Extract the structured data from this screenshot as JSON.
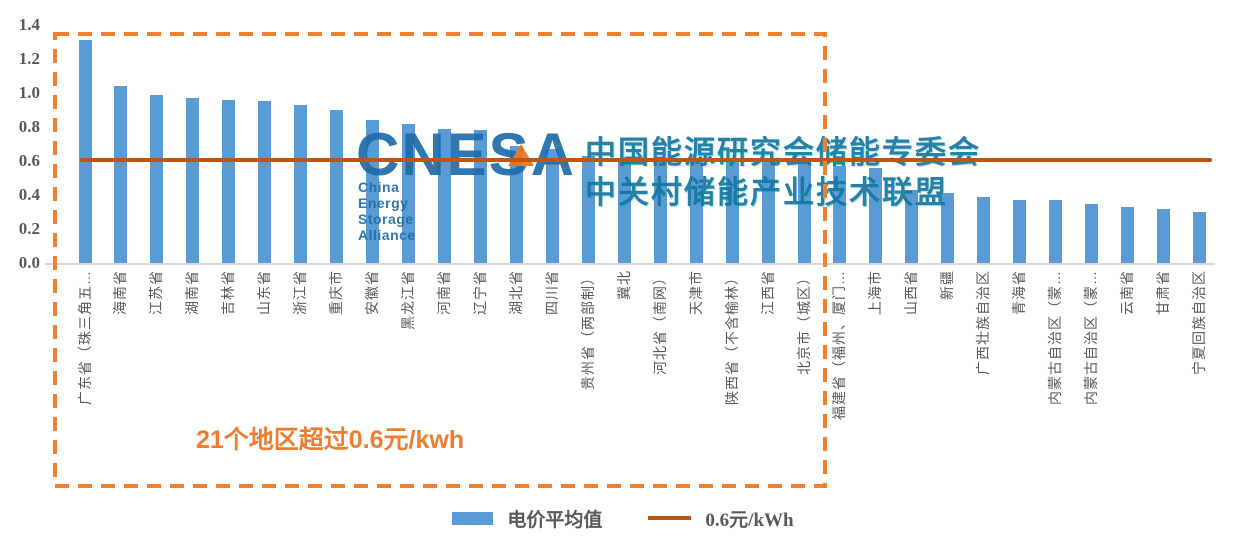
{
  "chart_data": {
    "type": "bar",
    "title": "",
    "xlabel": "",
    "ylabel": "",
    "ylim": [
      0,
      1.4
    ],
    "ytick_labels": [
      "1.4",
      "1.2",
      "1.0",
      "0.8",
      "0.6",
      "0.4",
      "0.2",
      "0.0"
    ],
    "grid": false,
    "legend_position": "bottom",
    "categories": [
      "广东省（珠三角五…",
      "海南省",
      "江苏省",
      "湖南省",
      "吉林省",
      "山东省",
      "浙江省",
      "重庆市",
      "安徽省",
      "黑龙江省",
      "河南省",
      "辽宁省",
      "湖北省",
      "四川省",
      "贵州省（两部制）",
      "冀北",
      "河北省（南网）",
      "天津市",
      "陕西省（不含榆林）",
      "江西省",
      "北京市（城区）",
      "福建省（福州、厦门…",
      "上海市",
      "山西省",
      "新疆",
      "广西壮族自治区",
      "青海省",
      "内蒙古自治区（蒙…",
      "内蒙古自治区（蒙…",
      "云南省",
      "甘肃省",
      "宁夏回族自治区"
    ],
    "series": [
      {
        "name": "电价平均值",
        "values": [
          1.31,
          1.04,
          0.99,
          0.97,
          0.96,
          0.95,
          0.93,
          0.9,
          0.84,
          0.82,
          0.79,
          0.78,
          0.69,
          0.67,
          0.63,
          0.62,
          0.62,
          0.61,
          0.61,
          0.6,
          0.6,
          0.57,
          0.56,
          0.43,
          0.41,
          0.39,
          0.37,
          0.37,
          0.35,
          0.33,
          0.32,
          0.3
        ]
      }
    ],
    "reference_line": {
      "name": "0.6元/kWh",
      "value": 0.6
    },
    "highlight_box": {
      "covers_first_n_categories": 21
    }
  },
  "annotation": {
    "text": "21个地区超过0.6元/kwh"
  },
  "legend": {
    "bar_label": "电价平均值",
    "line_label": "0.6元/kWh"
  },
  "watermark": {
    "logo": "CNESA",
    "tagline": "China Energy Storage Alliance",
    "line1": "中国能源研究会储能专委会",
    "line2": "中关村储能产业技术联盟"
  },
  "colors": {
    "bar": "#5B9BD5",
    "reference_line": "#BF5513",
    "dashed_box": "#F0802B",
    "annotation": "#ED7D31",
    "axis_text": "#595959",
    "axis_line": "#D9D9D9",
    "watermark_blue": "#1E6CA8",
    "watermark_teal": "#16769E",
    "watermark_orange": "#E87722"
  }
}
